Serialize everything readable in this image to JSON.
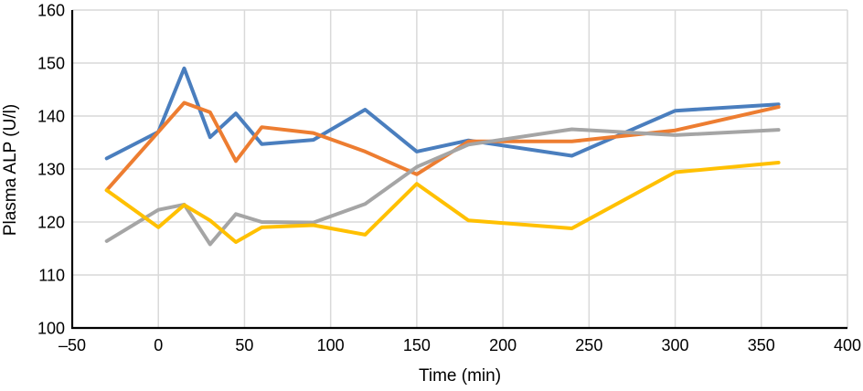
{
  "chart_data": {
    "type": "line",
    "title": "",
    "xlabel": "Time (min)",
    "ylabel": "Plasma ALP (U/l)",
    "xlim": [
      -50,
      400
    ],
    "ylim": [
      100,
      160
    ],
    "grid": true,
    "legend": null,
    "x_ticks": [
      -50,
      0,
      50,
      100,
      150,
      200,
      250,
      300,
      350,
      400
    ],
    "x_tick_labels": [
      "–50",
      "0",
      "50",
      "100",
      "150",
      "200",
      "250",
      "300",
      "350",
      "400"
    ],
    "y_ticks": [
      100,
      110,
      120,
      130,
      140,
      150,
      160
    ],
    "y_tick_labels": [
      "100",
      "110",
      "120",
      "130",
      "140",
      "150",
      "160"
    ],
    "x": [
      -30,
      0,
      15,
      30,
      45,
      60,
      90,
      120,
      150,
      180,
      240,
      300,
      360
    ],
    "series": [
      {
        "name": "blue",
        "color": "#4A7EBE",
        "values": [
          132.0,
          137.0,
          149.0,
          136.0,
          140.5,
          134.7,
          135.5,
          141.2,
          133.3,
          135.4,
          132.5,
          141.0,
          142.2
        ]
      },
      {
        "name": "orange",
        "color": "#ED7D31",
        "values": [
          126.0,
          137.0,
          142.5,
          140.7,
          131.5,
          137.9,
          136.8,
          133.3,
          129.0,
          135.2,
          135.2,
          137.3,
          141.7
        ]
      },
      {
        "name": "gray",
        "color": "#A5A5A5",
        "values": [
          116.4,
          122.3,
          123.3,
          115.8,
          121.5,
          120.0,
          119.9,
          123.4,
          130.4,
          134.6,
          137.5,
          136.4,
          137.4
        ]
      },
      {
        "name": "yellow",
        "color": "#FFC000",
        "values": [
          126.0,
          119.0,
          123.2,
          120.3,
          116.2,
          119.0,
          119.4,
          117.6,
          127.2,
          120.3,
          118.8,
          129.4,
          131.2
        ]
      }
    ],
    "colors": {
      "axis": "#000000",
      "gridline": "#d9d9d9",
      "background": "#ffffff"
    }
  }
}
